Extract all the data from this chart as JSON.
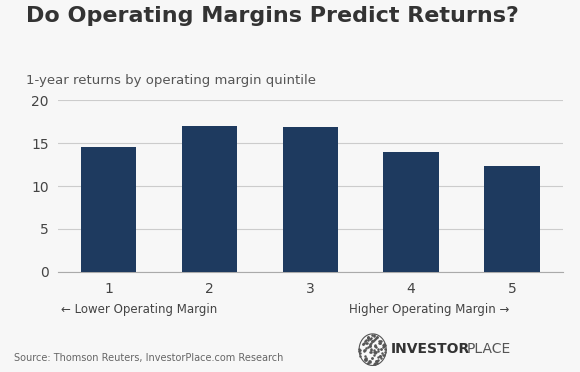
{
  "title": "Do Operating Margins Predict Returns?",
  "subtitle": "1-year returns by operating margin quintile",
  "categories": [
    "1",
    "2",
    "3",
    "4",
    "5"
  ],
  "values": [
    14.6,
    17.0,
    16.9,
    14.0,
    12.3
  ],
  "bar_color": "#1e3a5f",
  "ylim": [
    0,
    20
  ],
  "yticks": [
    0,
    5,
    10,
    15,
    20
  ],
  "xlabel_left": "← Lower Operating Margin",
  "xlabel_right": "Higher Operating Margin →",
  "source_text": "Source: Thomson Reuters, InvestorPlace.com Research",
  "background_color": "#f7f7f7",
  "title_fontsize": 16,
  "subtitle_fontsize": 9.5,
  "tick_fontsize": 10,
  "bar_width": 0.55,
  "logo_bold_text": "INVESTOR",
  "logo_normal_text": "PLACE",
  "logo_fontsize": 10
}
